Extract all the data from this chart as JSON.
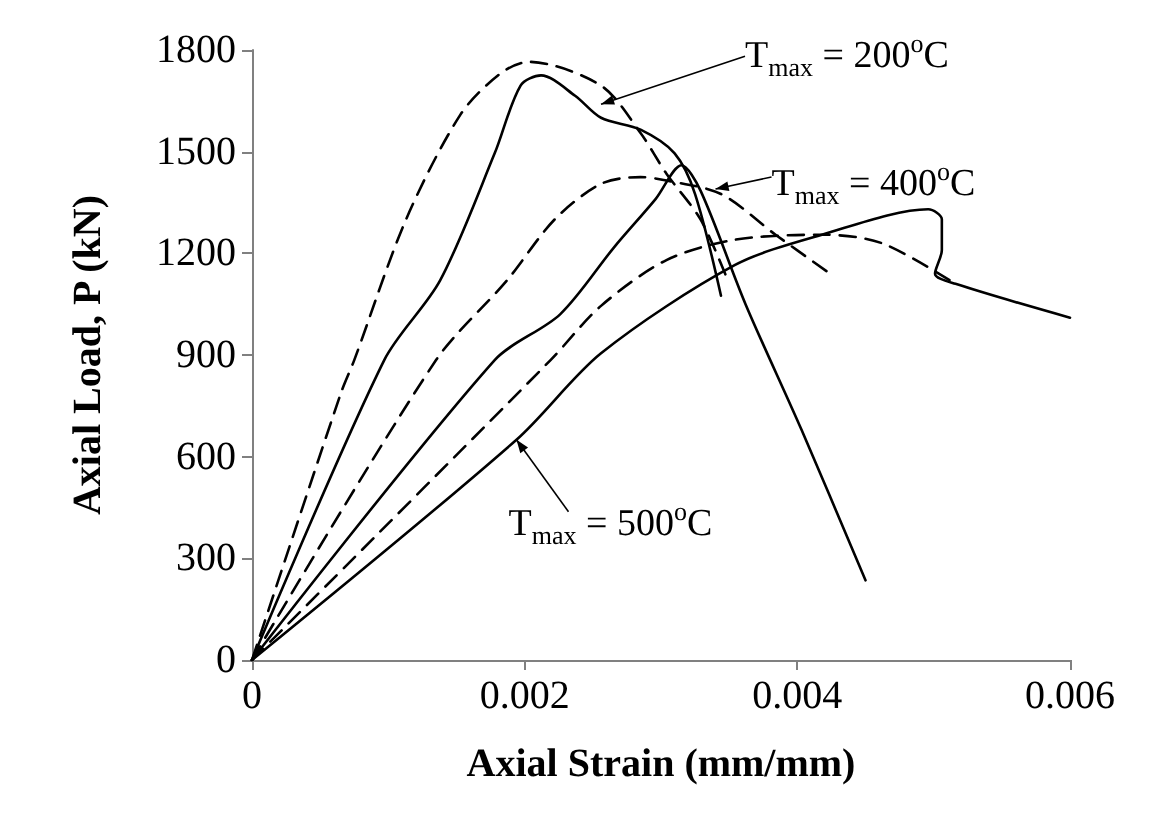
{
  "chart_data": {
    "type": "line",
    "xlabel": "Axial Strain (mm/mm)",
    "ylabel": "Axial Load, P (kN)",
    "xlim": [
      0,
      0.006
    ],
    "xticks": [
      0,
      0.002,
      0.004,
      0.006
    ],
    "ylim": [
      0,
      1800
    ],
    "yticks": [
      0,
      300,
      600,
      900,
      1200,
      1500,
      1800
    ],
    "grid": false,
    "marker": "none",
    "series": [
      {
        "color": "#000000",
        "line_style": "dashed",
        "x": [
          0,
          0.00065,
          0.00075,
          0.00113,
          0.00153,
          0.00182,
          0.00203,
          0.00256,
          0.00285,
          0.00304,
          0.00329,
          0.00349
        ],
        "values": [
          0,
          785,
          885,
          1300,
          1610,
          1730,
          1765,
          1695,
          1555,
          1435,
          1300,
          1120
        ]
      },
      {
        "color": "#000000",
        "line_style": "solid",
        "x": [
          0,
          0.00097,
          0.00138,
          0.00178,
          0.00197,
          0.00212,
          0.00237,
          0.00256,
          0.00285,
          0.0031,
          0.00325,
          0.00344
        ],
        "values": [
          0,
          885,
          1120,
          1495,
          1695,
          1725,
          1665,
          1600,
          1565,
          1495,
          1375,
          1075
        ]
      },
      {
        "color": "#000000",
        "line_style": "dashed",
        "x": [
          0,
          0.00135,
          0.00187,
          0.00222,
          0.00256,
          0.00285,
          0.00304,
          0.00344,
          0.00384,
          0.00424
        ],
        "values": [
          0,
          885,
          1120,
          1300,
          1405,
          1425,
          1415,
          1375,
          1255,
          1140
        ]
      },
      {
        "color": "#000000",
        "line_style": "solid",
        "x": [
          0,
          0.00178,
          0.00226,
          0.00266,
          0.00296,
          0.00315,
          0.00329,
          0.00362,
          0.00403,
          0.0045
        ],
        "values": [
          0,
          885,
          1020,
          1220,
          1360,
          1460,
          1385,
          1050,
          680,
          235
        ]
      },
      {
        "color": "#000000",
        "line_style": "dashed",
        "x": [
          0,
          0.00219,
          0.00256,
          0.00304,
          0.00354,
          0.00418,
          0.00462,
          0.00516
        ],
        "values": [
          0,
          885,
          1045,
          1180,
          1240,
          1255,
          1230,
          1110
        ]
      },
      {
        "color": "#000000",
        "line_style": "solid",
        "x": [
          0,
          0.00194,
          0.00256,
          0.00354,
          0.00418,
          0.00496,
          0.00506,
          0.00506,
          0.00501,
          0.00516,
          0.006
        ],
        "values": [
          0,
          650,
          905,
          1165,
          1255,
          1330,
          1300,
          1210,
          1140,
          1110,
          1010
        ]
      }
    ],
    "annotations": [
      {
        "text": "T$_{max}$ = 200$^{o}$C",
        "x": 0.00256,
        "y": 1640
      },
      {
        "text": "T$_{max}$ = 400$^{o}$C",
        "x": 0.0034,
        "y": 1390
      },
      {
        "text": "T$_{max}$ = 500$^{o}$C",
        "x": 0.00194,
        "y": 650
      }
    ]
  }
}
